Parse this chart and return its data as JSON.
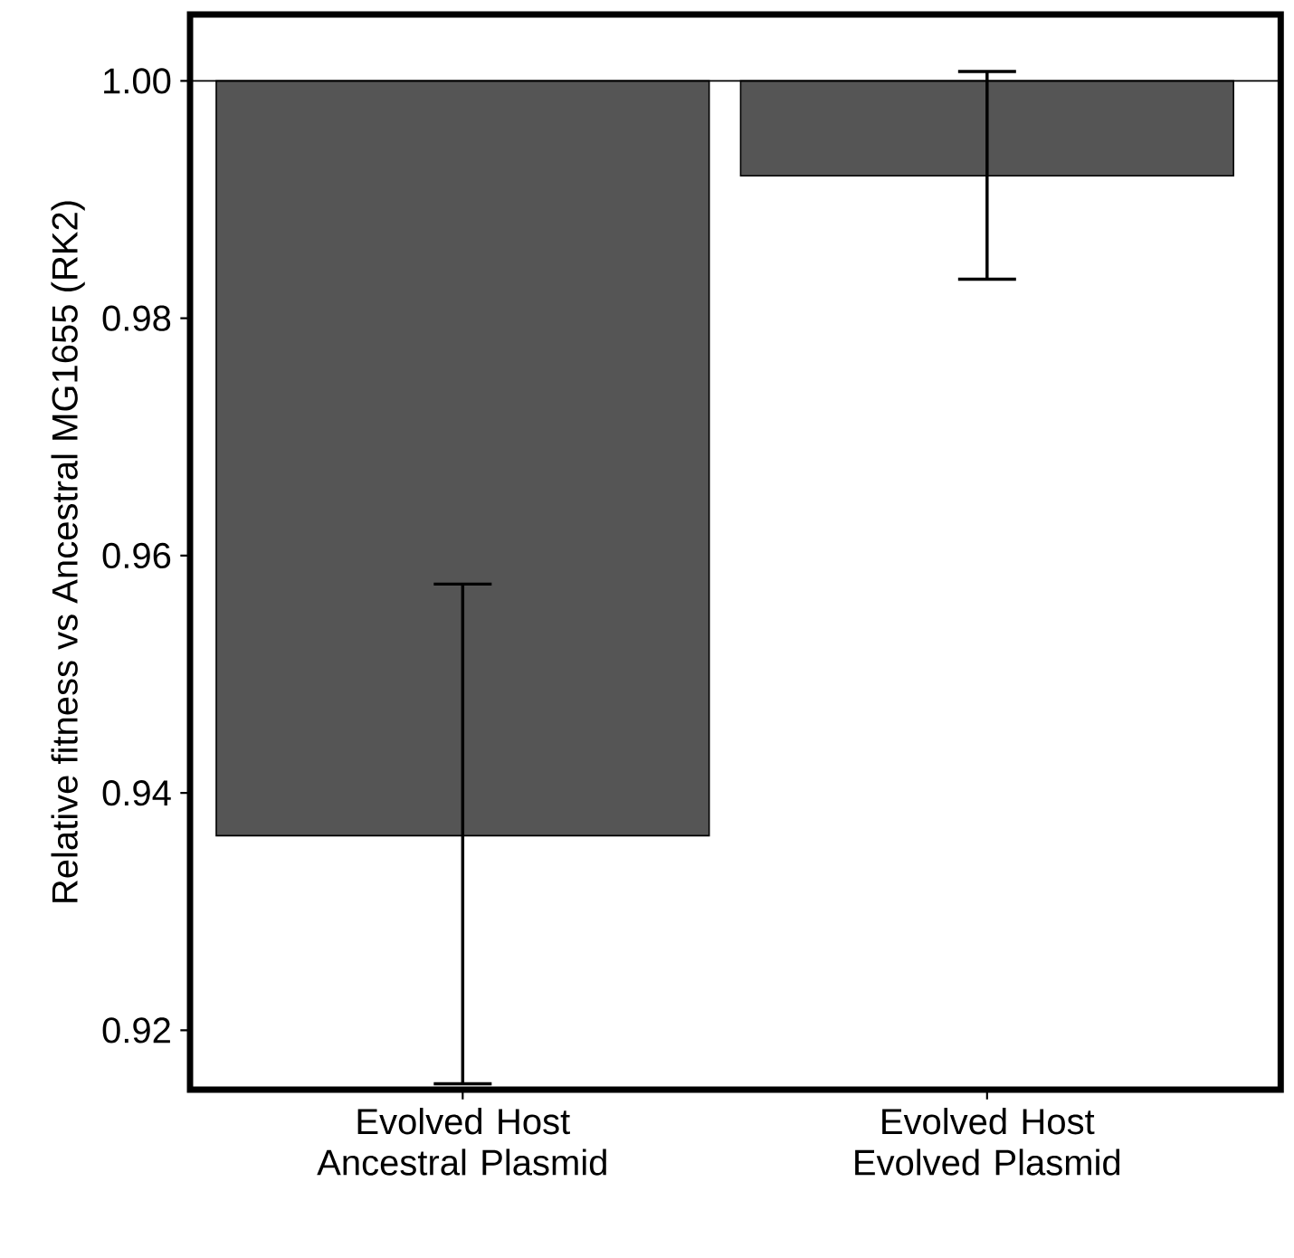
{
  "chart_data": {
    "type": "bar",
    "ylabel": "Relative fitness vs Ancestral MG1655 (RK2)",
    "categories": [
      "Evolved Host Ancestral Plasmid",
      "Evolved Host Evolved Plasmid"
    ],
    "base": [
      1.0,
      1.0
    ],
    "values": [
      -0.0636,
      -0.008
    ],
    "errors": [
      [
        0.9155,
        0.9576
      ],
      [
        0.9833,
        1.0008
      ]
    ],
    "color": "#555555",
    "ylim": [
      0.915,
      1.0056
    ],
    "yticks": [
      0.92,
      0.94,
      0.96,
      0.98,
      {
        "value": 1.0,
        "label": "1.00"
      }
    ],
    "ref_lines": [
      {
        "axis": "y",
        "value": 1.0
      }
    ],
    "grid": false
  }
}
